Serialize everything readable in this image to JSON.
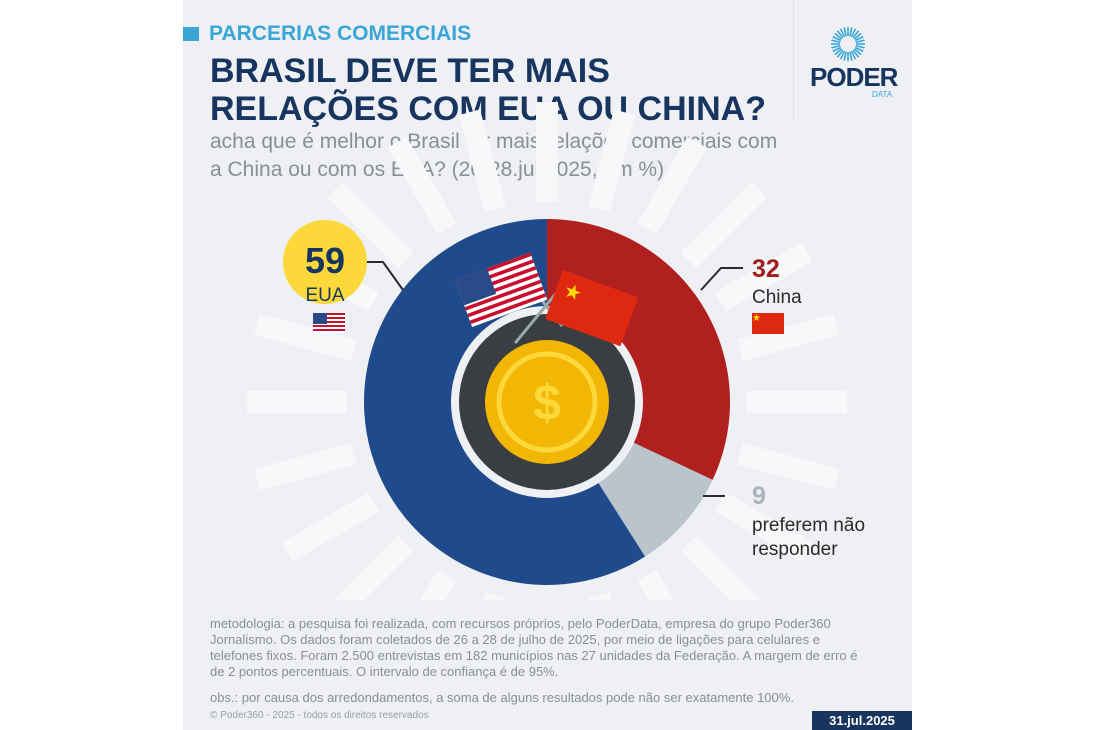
{
  "header": {
    "kicker": "PARCERIAS COMERCIAIS",
    "title": "BRASIL DEVE TER MAIS RELAÇÕES COM EUA OU CHINA?",
    "subtitle": "acha que é melhor o Brasil ter mais relações comerciais com a China ou com os EUA? (26-28.jul.2025, em %)"
  },
  "logo": {
    "name": "PODER",
    "sub": "DATA"
  },
  "chart_data": {
    "type": "pie",
    "donut": true,
    "categories": [
      "China",
      "preferem não responder",
      "EUA"
    ],
    "values": [
      32,
      9,
      59
    ],
    "colors": [
      "#b0201f",
      "#b9c4cc",
      "#1f4b8c"
    ],
    "labels": {
      "eua": {
        "value": "59",
        "name": "EUA"
      },
      "china": {
        "value": "32",
        "name": "China"
      },
      "nr": {
        "value": "9",
        "name": "preferem não responder"
      }
    }
  },
  "footer": {
    "methodology": "metodologia: a pesquisa foi realizada, com recursos próprios, pelo PoderData, empresa do grupo Poder360 Jornalismo. Os dados foram coletados de 26 a 28 de julho de 2025, por meio de ligações para celulares e telefones fixos. Foram 2.500 entrevistas em 182 municípios nas 27 unidades da Federação. A margem de erro é de 2 pontos percentuais. O intervalo de confiança é de 95%.",
    "obs": "obs.: por causa dos arredondamentos, a soma de alguns resultados pode não ser exatamente 100%.",
    "copyright": "© Poder360 - 2025 - todos os direitos reservados",
    "date": "31.jul.2025"
  }
}
